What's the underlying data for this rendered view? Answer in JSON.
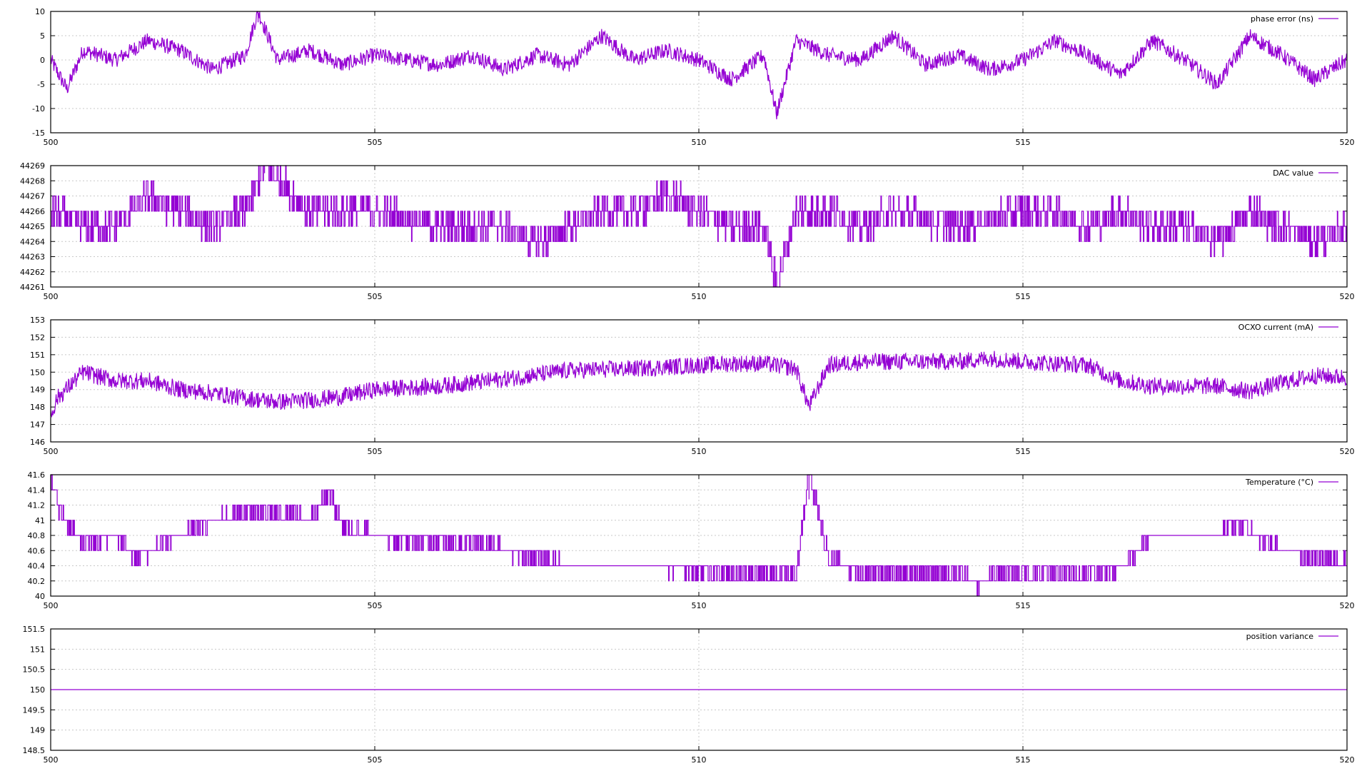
{
  "x_axis": {
    "range": [
      500,
      520
    ],
    "ticks": [
      500,
      505,
      510,
      515,
      520
    ],
    "tick_labels": [
      "500",
      "505",
      "510",
      "515",
      "520"
    ]
  },
  "style": {
    "series_color": "#9400D3",
    "grid_color": "#c8c8c8",
    "axis_color": "#000000",
    "background": "#ffffff"
  },
  "chart_data": [
    {
      "type": "line",
      "legend": "phase error (ns)",
      "legend_position": "top-right",
      "grid": true,
      "xlim": [
        500,
        520
      ],
      "ylim": [
        -15,
        10
      ],
      "yticks": [
        10,
        5,
        0,
        -5,
        -10,
        -15
      ],
      "ytick_labels": [
        "10",
        "5",
        "0",
        "-5",
        "-10",
        "-15"
      ],
      "x": [
        500.0,
        500.25,
        500.5,
        501.0,
        501.5,
        502.0,
        502.5,
        503.0,
        503.2,
        503.5,
        504.0,
        504.5,
        505.0,
        505.5,
        506.0,
        506.5,
        507.0,
        507.5,
        508.0,
        508.5,
        509.0,
        509.5,
        510.0,
        510.5,
        511.0,
        511.2,
        511.5,
        512.0,
        512.5,
        513.0,
        513.5,
        514.0,
        514.5,
        515.0,
        515.5,
        516.0,
        516.5,
        517.0,
        517.5,
        518.0,
        518.5,
        519.0,
        519.5,
        520.0
      ],
      "values": [
        0,
        -6,
        2,
        0,
        4,
        2,
        -2,
        1,
        10,
        0,
        2,
        -1,
        1,
        0,
        -1,
        1,
        -2,
        1,
        -1,
        5,
        0,
        2,
        0,
        -4,
        1,
        -11,
        4,
        1,
        0,
        5,
        -1,
        1,
        -2,
        0,
        4,
        1,
        -3,
        4,
        0,
        -5,
        5,
        1,
        -4,
        0
      ],
      "noise": 1.6
    },
    {
      "type": "line",
      "legend": "DAC value",
      "legend_position": "top-right",
      "grid": true,
      "xlim": [
        500,
        520
      ],
      "ylim": [
        44261,
        44269
      ],
      "yticks": [
        44269,
        44268,
        44267,
        44266,
        44265,
        44264,
        44263,
        44262,
        44261
      ],
      "ytick_labels": [
        "44269",
        "44268",
        "44267",
        "44266",
        "44265",
        "44264",
        "44263",
        "44262",
        "44261"
      ],
      "x": [
        500.0,
        500.5,
        501.0,
        501.5,
        502.0,
        502.5,
        503.0,
        503.3,
        504.0,
        505.0,
        506.0,
        507.0,
        507.5,
        508.0,
        508.5,
        509.0,
        509.5,
        510.0,
        510.5,
        511.0,
        511.2,
        511.5,
        512.0,
        512.5,
        513.0,
        514.0,
        515.0,
        515.5,
        516.0,
        516.5,
        517.0,
        517.5,
        518.0,
        518.5,
        519.0,
        519.5,
        520.0
      ],
      "values": [
        44266,
        44265,
        44265,
        44267,
        44266,
        44265,
        44266,
        44269,
        44266,
        44266,
        44265,
        44265,
        44264,
        44265,
        44266,
        44266,
        44267,
        44266,
        44265,
        44265,
        44261,
        44266,
        44266,
        44265,
        44266,
        44265,
        44266,
        44266,
        44265,
        44266,
        44265,
        44265,
        44264,
        44266,
        44265,
        44264,
        44265
      ],
      "noise": 1.0,
      "quantized": true
    },
    {
      "type": "line",
      "legend": "OCXO current (mA)",
      "legend_position": "top-right",
      "grid": true,
      "xlim": [
        500,
        520
      ],
      "ylim": [
        146,
        153
      ],
      "yticks": [
        153,
        152,
        151,
        150,
        149,
        148,
        147,
        146
      ],
      "ytick_labels": [
        "153",
        "152",
        "151",
        "150",
        "149",
        "148",
        "147",
        "146"
      ],
      "x": [
        500.0,
        500.1,
        500.5,
        501.0,
        501.5,
        502.0,
        502.5,
        503.0,
        503.5,
        504.0,
        504.5,
        505.0,
        506.0,
        507.0,
        508.0,
        509.0,
        510.0,
        510.5,
        511.0,
        511.5,
        511.7,
        512.0,
        512.5,
        513.0,
        514.0,
        514.5,
        515.0,
        516.0,
        516.5,
        517.0,
        518.0,
        518.5,
        519.0,
        519.5,
        520.0
      ],
      "values": [
        147.5,
        148.5,
        150.0,
        149.5,
        149.5,
        149.0,
        148.8,
        148.5,
        148.3,
        148.4,
        148.6,
        149.0,
        149.2,
        149.6,
        150.1,
        150.2,
        150.4,
        150.5,
        150.5,
        150.2,
        148.0,
        150.4,
        150.6,
        150.6,
        150.6,
        150.8,
        150.6,
        150.4,
        149.5,
        149.2,
        149.2,
        148.9,
        149.4,
        149.8,
        149.7
      ],
      "noise": 0.5
    },
    {
      "type": "line",
      "legend": "Temperature (°C)",
      "legend_position": "top-right",
      "grid": true,
      "xlim": [
        500,
        520
      ],
      "ylim": [
        40,
        41.6
      ],
      "yticks": [
        41.6,
        41.4,
        41.2,
        41.0,
        40.8,
        40.6,
        40.4,
        40.2,
        40.0
      ],
      "ytick_labels": [
        "41.6",
        "41.4",
        "41.2",
        "41",
        "40.8",
        "40.6",
        "40.4",
        "40.2",
        "40"
      ],
      "x": [
        500.0,
        500.2,
        500.5,
        501.0,
        501.3,
        501.5,
        502.0,
        502.5,
        503.0,
        503.5,
        504.0,
        504.3,
        504.5,
        505.0,
        505.5,
        506.0,
        506.5,
        507.0,
        507.5,
        508.0,
        508.5,
        509.0,
        509.5,
        510.0,
        510.5,
        511.0,
        511.5,
        511.7,
        512.0,
        512.5,
        513.0,
        513.5,
        514.0,
        514.3,
        514.6,
        515.0,
        515.5,
        516.0,
        516.5,
        517.0,
        517.5,
        518.0,
        518.3,
        518.6,
        519.0,
        519.5,
        520.0
      ],
      "values": [
        41.5,
        41.0,
        40.7,
        40.8,
        40.5,
        40.6,
        40.8,
        41.0,
        41.1,
        41.1,
        41.0,
        41.35,
        40.9,
        40.8,
        40.75,
        40.7,
        40.7,
        40.6,
        40.5,
        40.4,
        40.4,
        40.4,
        40.4,
        40.35,
        40.3,
        40.3,
        40.3,
        41.6,
        40.5,
        40.3,
        40.3,
        40.3,
        40.3,
        40.15,
        40.3,
        40.3,
        40.3,
        40.3,
        40.4,
        40.8,
        40.8,
        40.8,
        41.0,
        40.8,
        40.6,
        40.5,
        40.45
      ],
      "noise": 0.1,
      "quantized": true
    },
    {
      "type": "line",
      "legend": "position variance",
      "legend_position": "top-right",
      "grid": true,
      "xlim": [
        500,
        520
      ],
      "ylim": [
        148.5,
        151.5
      ],
      "yticks": [
        151.5,
        151.0,
        150.5,
        150.0,
        149.5,
        149.0,
        148.5
      ],
      "ytick_labels": [
        "151.5",
        "151",
        "150.5",
        "150",
        "149.5",
        "149",
        "148.5"
      ],
      "x": [
        500,
        520
      ],
      "values": [
        150,
        150
      ],
      "noise": 0
    }
  ]
}
